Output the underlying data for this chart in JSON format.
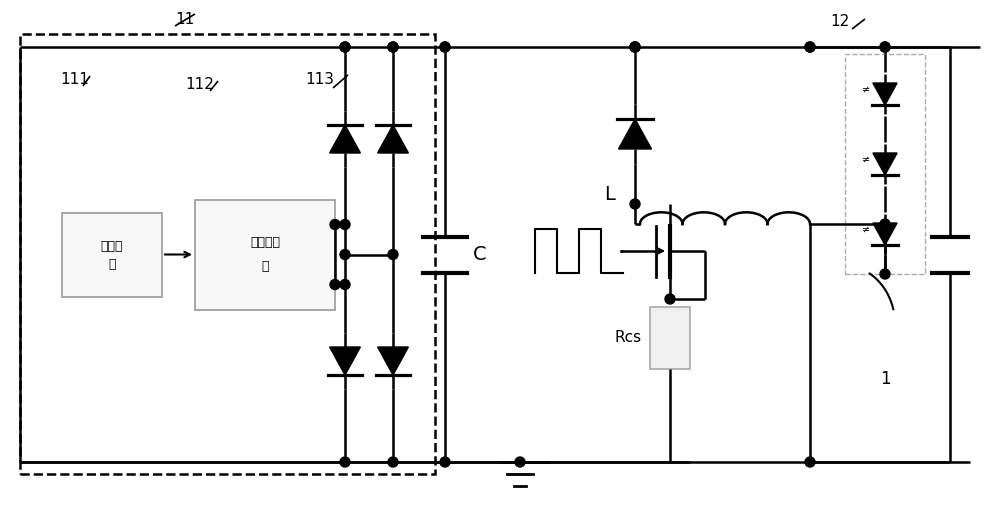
{
  "bg": "#ffffff",
  "lc": "#000000",
  "lw": 1.8,
  "ac_label": "交流电源",
  "tx_label1": "电子变压",
  "tx_label2": "器",
  "label_11": "11",
  "label_111": "111",
  "label_112": "112",
  "label_113": "113",
  "label_12": "12",
  "label_C": "C",
  "label_L": "L",
  "label_Rcs": "Rcs",
  "label_1": "1"
}
